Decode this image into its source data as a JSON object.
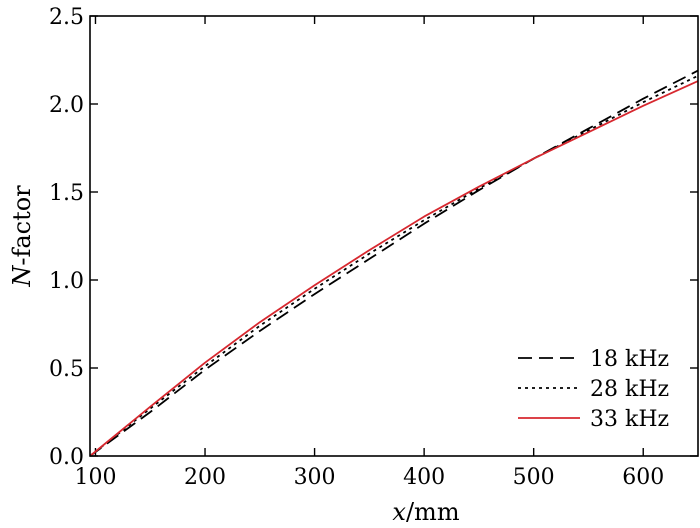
{
  "chart_data": {
    "type": "line",
    "xlabel_var": "x",
    "xlabel_unit": "/mm",
    "ylabel_var": "N",
    "ylabel_rest": "-factor",
    "xlim": [
      95,
      650
    ],
    "ylim": [
      0,
      2.5
    ],
    "xticks": [
      "100",
      "200",
      "300",
      "400",
      "500",
      "600"
    ],
    "yticks": [
      "0.0",
      "0.5",
      "1.0",
      "1.5",
      "2.0",
      "2.5"
    ],
    "grid": false,
    "legend_position": "bottom-right",
    "series": [
      {
        "name": "18 kHz",
        "style": "dashed",
        "color": "#000000",
        "x": [
          95,
          150,
          200,
          250,
          300,
          350,
          400,
          450,
          500,
          550,
          600,
          650
        ],
        "y": [
          0.0,
          0.25,
          0.49,
          0.71,
          0.92,
          1.12,
          1.32,
          1.51,
          1.69,
          1.86,
          2.03,
          2.19
        ]
      },
      {
        "name": "28 kHz",
        "style": "dotted",
        "color": "#000000",
        "x": [
          95,
          150,
          200,
          250,
          300,
          350,
          400,
          450,
          500,
          550,
          600,
          650
        ],
        "y": [
          0.0,
          0.27,
          0.51,
          0.74,
          0.95,
          1.15,
          1.34,
          1.52,
          1.69,
          1.85,
          2.01,
          2.16
        ]
      },
      {
        "name": "33 kHz",
        "style": "solid",
        "color": "#d7282f",
        "x": [
          95,
          150,
          200,
          250,
          300,
          350,
          400,
          450,
          500,
          550,
          600,
          650
        ],
        "y": [
          0.0,
          0.28,
          0.53,
          0.76,
          0.97,
          1.17,
          1.36,
          1.53,
          1.69,
          1.84,
          1.99,
          2.13
        ]
      }
    ]
  }
}
